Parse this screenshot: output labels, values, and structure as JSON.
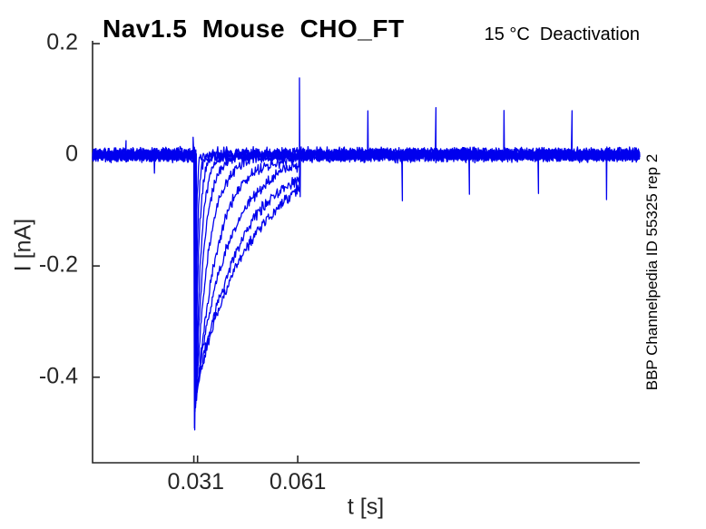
{
  "chart_data": {
    "type": "line",
    "title": "Nav1.5  Mouse  CHO_FT",
    "annotation": "15 °C  Deactivation",
    "side_label": "BBP Channelpedia ID 55325 rep 2",
    "xlabel": "t [s]",
    "ylabel": "I [nA]",
    "description": "Ten overlaid whole-cell current sweeps of a Nav1.5 deactivation protocol: flat zero-current baseline, a sharp inward tail-current transient at t=0.031 s reaching about -0.49 nA, exponential deactivation recoveries with increasing time constants back to 0 nA by t=0.061 s, then baseline with periodic small stimulus artifacts.",
    "xlim": [
      0.001,
      0.161
    ],
    "ylim": [
      -0.554,
      0.205
    ],
    "grid": false,
    "legend": null,
    "line_color": "#0000ee",
    "axis_color": "#262626",
    "sample_dt_s": 0.0002,
    "yticks": [
      {
        "v": 0.2,
        "label": "0.2"
      },
      {
        "v": 0,
        "label": "0"
      },
      {
        "v": -0.2,
        "label": "-0.2"
      },
      {
        "v": -0.4,
        "label": "-0.4"
      }
    ],
    "xtick_marks": [
      0.0306,
      0.0317,
      0.061
    ],
    "xtick_labels": [
      {
        "v": 0.0312,
        "label": "0.031"
      },
      {
        "v": 0.061,
        "label": "0.061"
      }
    ],
    "sweeps": {
      "count": 10,
      "baseline_nA": 0,
      "noise_peak_nA": 0.013,
      "wobble_nA": 0.0025,
      "onset_s": 0.0306,
      "onset_stagger_s": 8e-05,
      "rise_s": 0.0002,
      "offset_s": 0.0615,
      "taus_s": [
        0.0004,
        0.0007,
        0.0011,
        0.0017,
        0.0026,
        0.004,
        0.0065,
        0.0095,
        0.013,
        0.016
      ],
      "peaks_nA": [
        -0.495,
        -0.48,
        -0.47,
        -0.46,
        -0.45,
        -0.445,
        -0.44,
        -0.43,
        -0.425,
        -0.415
      ]
    },
    "artifact_spikes": [
      {
        "t_s": 0.0108,
        "amp_nA": 0.033,
        "sweep": 0
      },
      {
        "t_s": 0.0191,
        "amp_nA": -0.036,
        "sweep": 0
      },
      {
        "t_s": 0.0304,
        "amp_nA": 0.035,
        "sweep": 0
      },
      {
        "t_s": 0.0615,
        "amp_nA": 0.148,
        "sweep": 0
      },
      {
        "t_s": 0.0617,
        "amp_nA": -0.08,
        "sweep": 1
      },
      {
        "t_s": 0.0815,
        "amp_nA": 0.078,
        "sweep": 0
      },
      {
        "t_s": 0.0916,
        "amp_nA": -0.078,
        "sweep": 0
      },
      {
        "t_s": 0.1014,
        "amp_nA": 0.078,
        "sweep": 0
      },
      {
        "t_s": 0.1112,
        "amp_nA": -0.078,
        "sweep": 0
      },
      {
        "t_s": 0.1213,
        "amp_nA": 0.078,
        "sweep": 0
      },
      {
        "t_s": 0.1314,
        "amp_nA": -0.078,
        "sweep": 0
      },
      {
        "t_s": 0.1412,
        "amp_nA": 0.078,
        "sweep": 0
      },
      {
        "t_s": 0.1513,
        "amp_nA": -0.078,
        "sweep": 0
      }
    ]
  }
}
